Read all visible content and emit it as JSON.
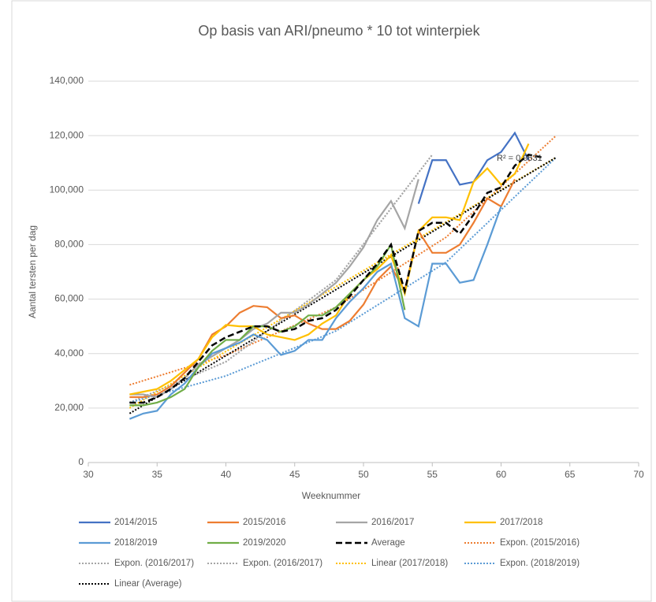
{
  "chart_data": {
    "type": "line",
    "title": "Op basis van ARI/pneumo * 10 tot winterpiek",
    "x_label": "Weeknummer",
    "y_label": "Aantal tersten per dag",
    "annotation": "R² = 0.9631",
    "x": [
      33,
      34,
      35,
      36,
      37,
      38,
      39,
      40,
      41,
      42,
      43,
      44,
      45,
      46,
      47,
      48,
      49,
      50,
      51,
      52,
      53,
      54,
      55,
      56,
      57,
      58,
      59,
      60,
      61,
      62,
      63
    ],
    "series": [
      {
        "name": "2014/2015",
        "color": "#4472c4",
        "dash": "solid",
        "values": [
          null,
          null,
          null,
          null,
          null,
          null,
          null,
          null,
          null,
          null,
          null,
          null,
          null,
          null,
          null,
          null,
          null,
          null,
          null,
          null,
          null,
          95000,
          111000,
          111000,
          102000,
          103000,
          111000,
          114000,
          121000,
          111000,
          null
        ]
      },
      {
        "name": "2015/2016",
        "color": "#ed7d31",
        "dash": "solid",
        "values": [
          24000,
          24000,
          25000,
          28000,
          33000,
          38000,
          47000,
          50000,
          55000,
          57500,
          57000,
          53000,
          54000,
          51000,
          49000,
          49000,
          52000,
          58000,
          67000,
          72000,
          63000,
          85000,
          77000,
          77000,
          80000,
          88000,
          97000,
          94000,
          104000,
          null,
          null
        ]
      },
      {
        "name": "2016/2017",
        "color": "#a5a5a5",
        "dash": "solid",
        "values": [
          25000,
          25000,
          24000,
          27000,
          31000,
          36000,
          39000,
          42000,
          45000,
          49000,
          51000,
          55000,
          55000,
          58000,
          62000,
          66000,
          72000,
          79000,
          89000,
          96000,
          86000,
          104000,
          null,
          null,
          null,
          null,
          null,
          null,
          null,
          null,
          null
        ]
      },
      {
        "name": "2017/2018",
        "color": "#ffc000",
        "dash": "solid",
        "values": [
          25000,
          26000,
          27000,
          30000,
          34000,
          38000,
          46000,
          50500,
          50000,
          50000,
          47000,
          46000,
          45000,
          47000,
          51000,
          54000,
          62000,
          67000,
          71000,
          76000,
          62000,
          85000,
          90000,
          90000,
          89000,
          103000,
          108000,
          102000,
          106000,
          117000,
          null
        ]
      },
      {
        "name": "2018/2019",
        "color": "#5b9bd5",
        "dash": "solid",
        "values": [
          16000,
          18000,
          19000,
          25000,
          29000,
          35000,
          40000,
          42000,
          44000,
          47000,
          45000,
          39500,
          41000,
          45000,
          45000,
          53000,
          59000,
          64000,
          70000,
          73000,
          53000,
          50000,
          73000,
          73000,
          66000,
          67000,
          80000,
          94000,
          null,
          null,
          null
        ]
      },
      {
        "name": "2019/2020",
        "color": "#70ad47",
        "dash": "solid",
        "values": [
          21000,
          21000,
          22000,
          24000,
          27000,
          35000,
          41000,
          45000,
          45000,
          50000,
          50000,
          48000,
          50000,
          54000,
          54000,
          57000,
          62000,
          67000,
          72000,
          80000,
          56000,
          null,
          null,
          null,
          null,
          null,
          null,
          null,
          null,
          null,
          null
        ]
      },
      {
        "name": "Average",
        "color": "#000000",
        "dash": "dashed",
        "values": [
          22000,
          22000,
          24000,
          27000,
          31000,
          37000,
          43000,
          46000,
          48000,
          50000,
          50000,
          48000,
          49000,
          52000,
          53000,
          56000,
          61000,
          67000,
          73000,
          80000,
          63000,
          85000,
          88000,
          88000,
          84000,
          91000,
          99000,
          101000,
          109000,
          113000,
          112000
        ]
      }
    ],
    "trendlines": [
      {
        "name": "Expon. (2015/2016)",
        "color": "#ed7d31",
        "dash": "dotted",
        "x": [
          33,
          40,
          48,
          56,
          64
        ],
        "values": [
          28500,
          39400,
          57000,
          82700,
          120000
        ]
      },
      {
        "name": "Expon. (2016/2017)",
        "color": "#a5a5a5",
        "dash": "dotted",
        "x": [
          33,
          40,
          48,
          55
        ],
        "values": [
          22000,
          37000,
          67000,
          113000
        ]
      },
      {
        "name": "Expon. (2016/2017)",
        "color": "#a5a5a5",
        "dash": "dotted",
        "x": [
          33,
          40,
          48,
          55
        ],
        "values": [
          22000,
          37000,
          67000,
          113000
        ]
      },
      {
        "name": "Linear (2017/2018)",
        "color": "#ffc000",
        "dash": "dotted",
        "x": [
          33,
          64
        ],
        "values": [
          20000,
          112000
        ]
      },
      {
        "name": "Expon. (2018/2019)",
        "color": "#5b9bd5",
        "dash": "dotted",
        "x": [
          33,
          40,
          48,
          56,
          64
        ],
        "values": [
          22000,
          31800,
          48300,
          73500,
          112000
        ]
      },
      {
        "name": "Linear (Average)",
        "color": "#000000",
        "dash": "dotted",
        "x": [
          33,
          64
        ],
        "values": [
          18000,
          112000
        ]
      }
    ],
    "xlim": [
      30,
      70
    ],
    "xticks": [
      30,
      35,
      40,
      45,
      50,
      55,
      60,
      65,
      70
    ],
    "ylim": [
      0,
      140000
    ],
    "yticks": [
      0,
      {
        "value": 20000,
        "label": "20,000"
      },
      {
        "value": 40000,
        "label": "40,000"
      },
      {
        "value": 60000,
        "label": "60,000"
      },
      {
        "value": 80000,
        "label": "80,000"
      },
      {
        "value": 100000,
        "label": "100,000"
      },
      {
        "value": 120000,
        "label": "120,000"
      },
      {
        "value": 140000,
        "label": "140,000"
      }
    ],
    "grid": true,
    "legend": "bottom"
  }
}
